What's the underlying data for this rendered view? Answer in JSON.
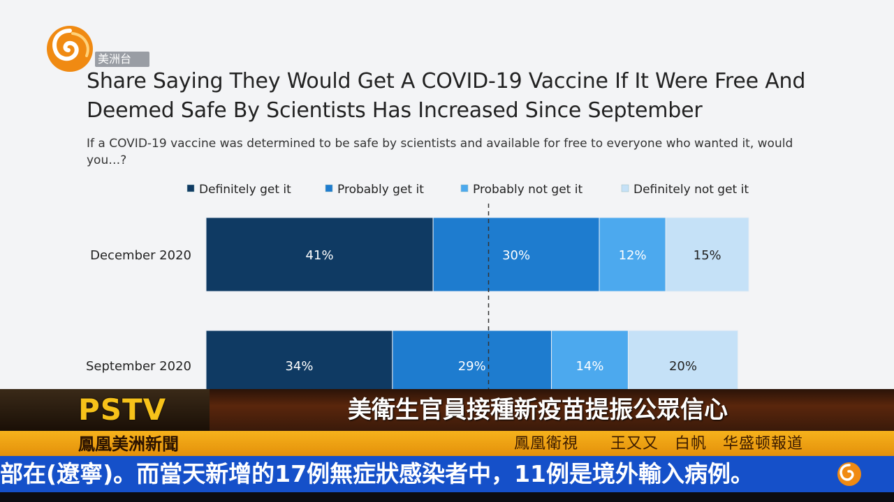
{
  "slide": {
    "title": "Share Saying They Would Get A COVID-19 Vaccine If It Were Free And Deemed Safe By Scientists Has Increased Since September",
    "subtitle": "If a COVID-19 vaccine was determined to be safe by scientists and available for free to everyone who wanted it, would you…?"
  },
  "logo": {
    "icon": "phoenix-logo-icon",
    "tag": "美洲台"
  },
  "chart_data": {
    "type": "bar",
    "orientation": "horizontal-stacked",
    "categories": [
      "December 2020",
      "September 2020"
    ],
    "series": [
      {
        "name": "Definitely get it",
        "color": "#0f3a63",
        "values": [
          41,
          34
        ]
      },
      {
        "name": "Probably get it",
        "color": "#1e7ccf",
        "values": [
          30,
          29
        ]
      },
      {
        "name": "Probably not get it",
        "color": "#4ca9ee",
        "values": [
          12,
          14
        ]
      },
      {
        "name": "Definitely not get it",
        "color": "#c5e1f7",
        "values": [
          15,
          20
        ]
      }
    ],
    "labels": [
      [
        "41%",
        "30%",
        "12%",
        "15%"
      ],
      [
        "34%",
        "29%",
        "14%",
        "20%"
      ]
    ],
    "label_colors": [
      "#ffffff",
      "#ffffff",
      "#ffffff",
      "#222222"
    ],
    "reference_line": 50,
    "xlim": [
      0,
      100
    ],
    "legend": "top",
    "grid": false
  },
  "broadcast": {
    "brand": "PSTV",
    "headline": "美衛生官員接種新疫苗提振公眾信心",
    "channel": "鳳凰美洲新聞",
    "credit": "鳳凰衛視　　王又又　白帆　华盛顿報道",
    "ticker": "部在(遼寧)。而當天新增的17例無症狀感染者中，11例是境外輸入病例。",
    "ticker_icon": "phoenix-logo-icon",
    "colors": {
      "gold": "#f7c21a",
      "ticker_blue": "#1550c9",
      "orange": "#f6b21c"
    }
  }
}
